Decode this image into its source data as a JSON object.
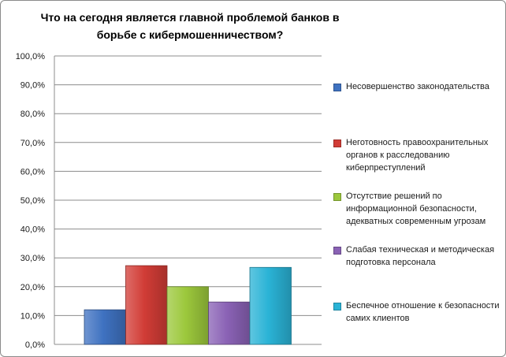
{
  "chart_data": {
    "type": "bar",
    "title": "Что на сегодня является главной проблемой банков в борьбе с кибермошенничеством?",
    "xlabel": "",
    "ylabel": "",
    "ylim": [
      0,
      100
    ],
    "y_ticks": [
      "0,0%",
      "10,0%",
      "20,0%",
      "30,0%",
      "40,0%",
      "50,0%",
      "60,0%",
      "70,0%",
      "80,0%",
      "90,0%",
      "100,0%"
    ],
    "grid": true,
    "legend_position": "right",
    "series": [
      {
        "name": "Несовершенство законодательства",
        "value": 12.0,
        "color": "#3f72c1"
      },
      {
        "name": "Неготовность правоохранительных органов к расследованию киберпреступлений",
        "value": 27.3,
        "color": "#d13c36"
      },
      {
        "name": "Отсутствие решений по информационной безопасности, адекватных современным угрозам",
        "value": 20.0,
        "color": "#9cc83c"
      },
      {
        "name": "Слабая техническая и методическая подготовка персонала",
        "value": 14.7,
        "color": "#8a62b5"
      },
      {
        "name": "Беспечное отношение к безопасности самих клиентов",
        "value": 26.7,
        "color": "#2ab3d6"
      }
    ]
  }
}
